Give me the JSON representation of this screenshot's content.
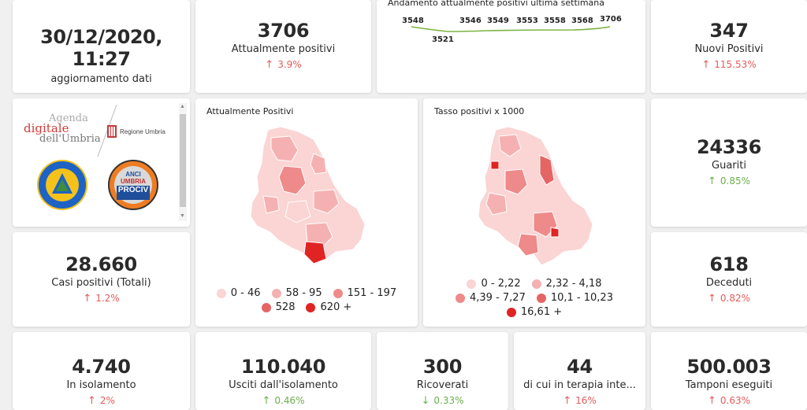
{
  "update": {
    "datetime": "30/12/2020, 11:27",
    "label": "aggiornamento dati"
  },
  "attualmente_positivi": {
    "value": "3706",
    "label": "Attualmente positivi",
    "change": "3.9%"
  },
  "trend": {
    "title": "Andamento attualmente positivi ultima settimana",
    "values_top": [
      "3548",
      "3546",
      "3549",
      "3553",
      "3558",
      "3568",
      "3706"
    ],
    "value_low": "3521",
    "line_color": "#7cb342"
  },
  "nuovi_positivi": {
    "value": "347",
    "label": "Nuovi Positivi",
    "change": "115.53%"
  },
  "logos": {
    "agenda_line1": "Agenda",
    "agenda_line2": "digitale",
    "agenda_line3": "dell'Umbria",
    "regione": "Regione Umbria",
    "protezione": "Protezione Civile",
    "protezione_sub": "Regione Umbria",
    "anci_line1": "ANCI",
    "anci_line2": "UMBRIA",
    "anci_line3": "PROCIV"
  },
  "map1": {
    "title": "Attualmente Positivi",
    "legend": [
      {
        "label": "0 - 46",
        "color": "#fbd4d4"
      },
      {
        "label": "58 - 95",
        "color": "#f5b1b1"
      },
      {
        "label": "151 - 197",
        "color": "#ee8a8a"
      },
      {
        "label": "528",
        "color": "#e56565"
      },
      {
        "label": "620 +",
        "color": "#e02424"
      }
    ]
  },
  "map2": {
    "title": "Tasso positivi x 1000",
    "legend": [
      {
        "label": "0 - 2,22",
        "color": "#fbd4d4"
      },
      {
        "label": "2,32 - 4,18",
        "color": "#f5b1b1"
      },
      {
        "label": "4,39 - 7,27",
        "color": "#ee8a8a"
      },
      {
        "label": "10,1 - 10,23",
        "color": "#e56565"
      },
      {
        "label": "16,61 +",
        "color": "#e02424"
      }
    ]
  },
  "guariti": {
    "value": "24336",
    "label": "Guariti",
    "change": "0.85%"
  },
  "casi_totali": {
    "value": "28.660",
    "label": "Casi positivi (Totali)",
    "change": "1.2%"
  },
  "deceduti": {
    "value": "618",
    "label": "Deceduti",
    "change": "0.82%"
  },
  "isolamento": {
    "value": "4.740",
    "label": "In isolamento",
    "change": "2%"
  },
  "usciti": {
    "value": "110.040",
    "label": "Usciti dall'isolamento",
    "change": "0.46%"
  },
  "ricoverati": {
    "value": "300",
    "label": "Ricoverati",
    "change": "0.33%"
  },
  "terapia": {
    "value": "44",
    "label": "di cui in terapia inte...",
    "change": "16%"
  },
  "tamponi": {
    "value": "500.003",
    "label": "Tamponi eseguiti",
    "change": "0.63%"
  },
  "icons": {
    "up": "↑",
    "down": "↓",
    "scroll_up": "▲",
    "scroll_down": "▼"
  },
  "colors": {
    "increase": "#e35b5b",
    "good": "#6ab04c",
    "background": "#f0f0f0"
  }
}
